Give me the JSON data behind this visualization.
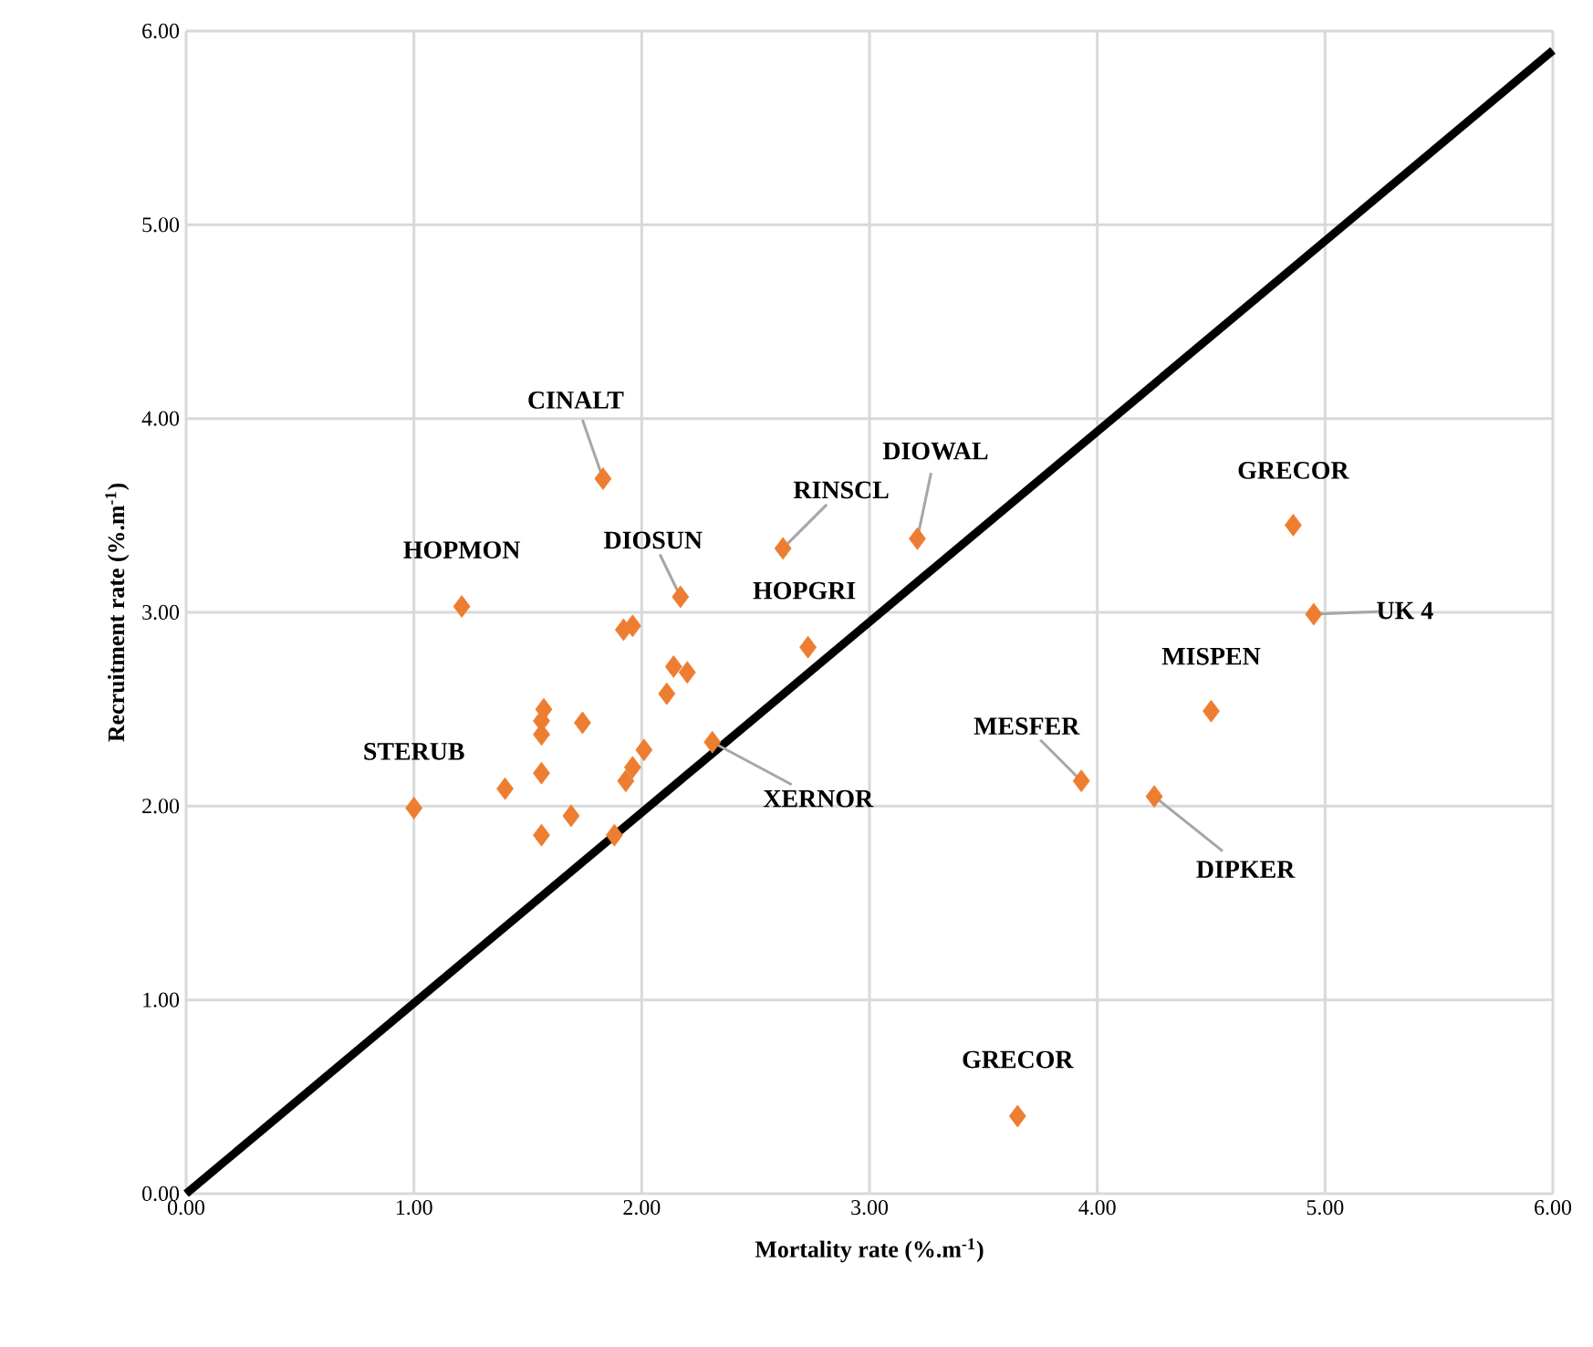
{
  "chart_data": {
    "type": "scatter",
    "xlabel": "Mortality rate (%.m$^{-1}$)",
    "ylabel": "Recruitment rate (%.m$^{-1}$)",
    "xlim": [
      0,
      6
    ],
    "ylim": [
      0,
      6
    ],
    "xticks": [
      {
        "value": 0,
        "label": "0.00"
      },
      {
        "value": 1,
        "label": "1.00"
      },
      {
        "value": 2,
        "label": "2.00"
      },
      {
        "value": 3,
        "label": "3.00"
      },
      {
        "value": 4,
        "label": "4.00"
      },
      {
        "value": 5,
        "label": "5.00"
      },
      {
        "value": 6,
        "label": "6.00"
      }
    ],
    "yticks": [
      {
        "value": 0,
        "label": "0.00"
      },
      {
        "value": 1,
        "label": "1.00"
      },
      {
        "value": 2,
        "label": "2.00"
      },
      {
        "value": 3,
        "label": "3.00"
      },
      {
        "value": 4,
        "label": "4.00"
      },
      {
        "value": 5,
        "label": "5.00"
      },
      {
        "value": 6,
        "label": "6.00"
      }
    ],
    "grid": true,
    "marker": "diamond",
    "series": [
      {
        "color": "#ed7d31",
        "x": [
          1.83,
          1.21,
          2.17,
          2.62,
          3.21,
          2.73,
          1.92,
          1.96,
          2.14,
          2.2,
          2.11,
          1.57,
          1.56,
          1.56,
          1.74,
          1.56,
          1.4,
          1.0,
          1.69,
          1.56,
          1.88,
          2.01,
          1.96,
          1.93,
          2.31,
          4.86,
          4.95,
          4.5,
          3.93,
          4.25,
          3.65
        ],
        "values": [
          3.69,
          3.03,
          3.08,
          3.33,
          3.38,
          2.82,
          2.91,
          2.93,
          2.72,
          2.69,
          2.58,
          2.5,
          2.44,
          2.37,
          2.43,
          2.17,
          2.09,
          1.99,
          1.95,
          1.85,
          1.85,
          2.29,
          2.2,
          2.13,
          2.33,
          3.45,
          2.99,
          2.49,
          2.13,
          2.05,
          0.4
        ]
      },
      {
        "type": "line",
        "color": "#000000",
        "line_style": "solid",
        "marker": "none",
        "x": [
          0,
          6
        ],
        "values": [
          0,
          5.9
        ]
      }
    ],
    "annotations": [
      {
        "text": "CINALT",
        "x": 1.83,
        "y": 3.69
      },
      {
        "text": "DIOWAL",
        "x": 3.21,
        "y": 3.38
      },
      {
        "text": "RINSCL",
        "x": 2.62,
        "y": 3.33
      },
      {
        "text": "GRECOR",
        "x": 4.86,
        "y": 3.45
      },
      {
        "text": "HOPMON",
        "x": 1.21,
        "y": 3.03
      },
      {
        "text": "DIOSUN",
        "x": 2.17,
        "y": 3.08
      },
      {
        "text": "HOPGRI",
        "x": 2.73,
        "y": 2.82
      },
      {
        "text": "UK 4",
        "x": 4.95,
        "y": 2.99
      },
      {
        "text": "MISPEN",
        "x": 4.5,
        "y": 2.49
      },
      {
        "text": "STERUB",
        "x": 1.0,
        "y": 1.99
      },
      {
        "text": "MESFER",
        "x": 3.93,
        "y": 2.13
      },
      {
        "text": "XERNOR",
        "x": 2.31,
        "y": 2.33
      },
      {
        "text": "DIPKER",
        "x": 4.25,
        "y": 2.05
      },
      {
        "text": "GRECOR",
        "x": 3.65,
        "y": 0.4
      }
    ]
  }
}
